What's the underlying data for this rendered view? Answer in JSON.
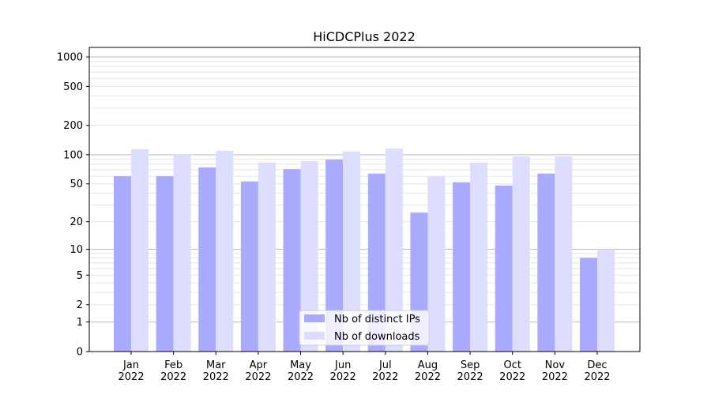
{
  "chart_data": {
    "type": "bar",
    "title": "HiCDCPlus 2022",
    "xlabel": "",
    "ylabel": "",
    "yscale": "log(1+y)",
    "ylim": [
      0,
      1250
    ],
    "grid": true,
    "legend_position": "bottom-center",
    "categories": [
      "Jan\n2022",
      "Feb\n2022",
      "Mar\n2022",
      "Apr\n2022",
      "May\n2022",
      "Jun\n2022",
      "Jul\n2022",
      "Aug\n2022",
      "Sep\n2022",
      "Oct\n2022",
      "Nov\n2022",
      "Dec\n2022"
    ],
    "yticks": [
      0,
      1,
      2,
      5,
      10,
      20,
      50,
      100,
      200,
      500,
      1000
    ],
    "series": [
      {
        "name": "Nb of distinct IPs",
        "color": "#aaaaff",
        "values": [
          60,
          60,
          74,
          53,
          71,
          89,
          64,
          25,
          52,
          48,
          64,
          8
        ]
      },
      {
        "name": "Nb of downloads",
        "color": "#ddddff",
        "values": [
          114,
          100,
          110,
          83,
          86,
          108,
          116,
          60,
          83,
          96,
          96,
          10
        ]
      }
    ]
  }
}
